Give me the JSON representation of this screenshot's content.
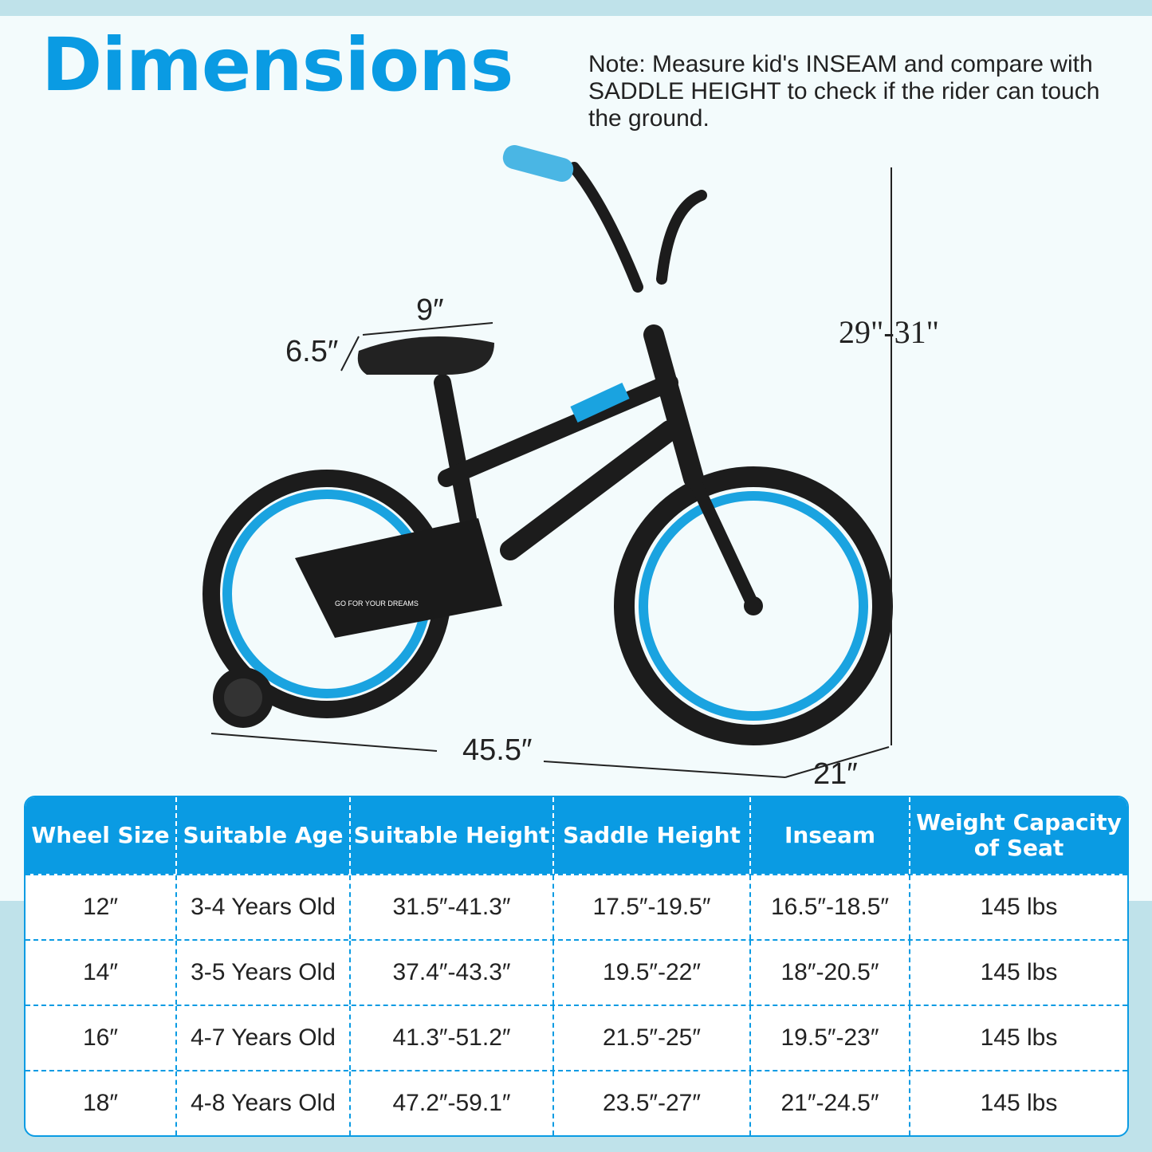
{
  "title": "Dimensions",
  "note": "Note: Measure kid's INSEAM and compare with SADDLE HEIGHT to check if the rider can touch the ground.",
  "dimensions": {
    "seat_length": "9″",
    "seat_width": "6.5″",
    "height": "29\"-31\"",
    "length": "45.5″",
    "width": "21″"
  },
  "bike_slogan": "GO FOR YOUR DREAMS",
  "colors": {
    "accent": "#0a9be3",
    "frame": "#1c1c1c"
  },
  "table": {
    "headers": [
      "Wheel Size",
      "Suitable Age",
      "Suitable Height",
      "Saddle Height",
      "Inseam",
      "Weight Capacity of Seat"
    ],
    "rows": [
      [
        "12″",
        "3-4 Years Old",
        "31.5″-41.3″",
        "17.5″-19.5″",
        "16.5″-18.5″",
        "145 lbs"
      ],
      [
        "14″",
        "3-5 Years Old",
        "37.4″-43.3″",
        "19.5″-22″",
        "18″-20.5″",
        "145 lbs"
      ],
      [
        "16″",
        "4-7 Years Old",
        "41.3″-51.2″",
        "21.5″-25″",
        "19.5″-23″",
        "145 lbs"
      ],
      [
        "18″",
        "4-8 Years Old",
        "47.2″-59.1″",
        "23.5″-27″",
        "21″-24.5″",
        "145 lbs"
      ]
    ]
  }
}
